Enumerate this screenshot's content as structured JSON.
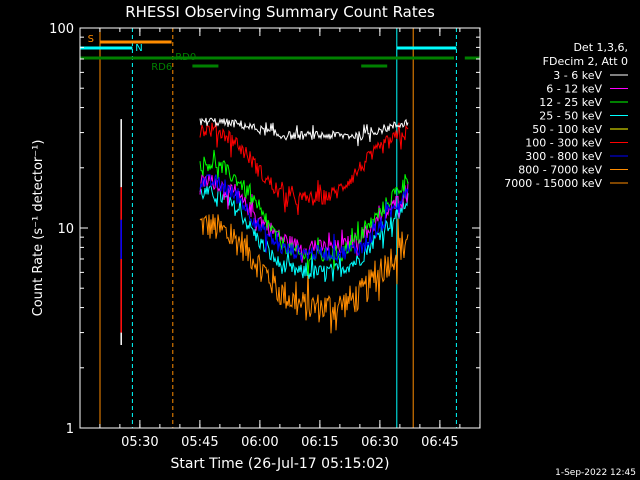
{
  "chart_data": {
    "type": "line",
    "title": "RHESSI Observing Summary Count Rates",
    "xlabel": "Start Time (26-Jul-17 05:15:02)",
    "ylabel": "Count Rate (s⁻¹ detector⁻¹)",
    "x_unit": "minutes after 05:15:02",
    "xlim": [
      0,
      100
    ],
    "ylim": [
      1,
      100
    ],
    "yscale": "log",
    "x_ticks": [
      {
        "x": 14.97,
        "label": "05:30"
      },
      {
        "x": 29.97,
        "label": "05:45"
      },
      {
        "x": 44.97,
        "label": "06:00"
      },
      {
        "x": 59.97,
        "label": "06:15"
      },
      {
        "x": 74.97,
        "label": "06:30"
      },
      {
        "x": 89.97,
        "label": "06:45"
      }
    ],
    "y_ticks": [
      {
        "y": 1,
        "label": "1"
      },
      {
        "y": 10,
        "label": "10"
      },
      {
        "y": 100,
        "label": "100"
      }
    ],
    "legend_header": [
      "Det 1,3,6,",
      "FDecim 2, Att 0"
    ],
    "legend_position": "right",
    "series": [
      {
        "name": "3 - 6 keV",
        "color": "#ffffff",
        "x": [
          30,
          34,
          40,
          45,
          50,
          55,
          60,
          65,
          70,
          75,
          80,
          82
        ],
        "y": [
          34,
          34,
          33,
          31,
          29,
          29,
          29,
          29,
          29,
          31,
          33,
          34
        ]
      },
      {
        "name": "6 - 12 keV",
        "color": "#ff00ff",
        "x": [
          30,
          34,
          40,
          45,
          50,
          55,
          60,
          65,
          70,
          75,
          80,
          82
        ],
        "y": [
          17,
          17,
          14,
          11,
          9,
          8,
          8,
          8,
          9,
          11,
          14,
          16
        ]
      },
      {
        "name": "12 - 25 keV",
        "color": "#00ff00",
        "x": [
          30,
          34,
          40,
          45,
          50,
          55,
          60,
          65,
          70,
          75,
          80,
          82
        ],
        "y": [
          21,
          21,
          17,
          12,
          8.5,
          7.3,
          7.2,
          7.5,
          9,
          12,
          16,
          18
        ]
      },
      {
        "name": "25 - 50 keV",
        "color": "#00ffff",
        "x": [
          30,
          34,
          40,
          45,
          50,
          55,
          60,
          65,
          70,
          75,
          80,
          82
        ],
        "y": [
          15,
          15,
          12,
          8.5,
          6.5,
          6,
          6,
          6.2,
          7,
          9.5,
          12,
          14
        ]
      },
      {
        "name": "50 - 100 keV",
        "color": "#ffff00",
        "x": [],
        "y": []
      },
      {
        "name": "100 - 300 keV",
        "color": "#ff0000",
        "x": [
          30,
          34,
          38,
          42,
          46,
          50,
          53,
          56,
          60,
          64,
          68,
          72,
          76,
          80,
          82
        ],
        "y": [
          31,
          31,
          28,
          23,
          18,
          15,
          14,
          14,
          14,
          15,
          18,
          22,
          26,
          29,
          30
        ]
      },
      {
        "name": "300 - 800 keV",
        "color": "#0000ff",
        "x": [
          30,
          34,
          40,
          45,
          50,
          55,
          60,
          65,
          70,
          75,
          80,
          82
        ],
        "y": [
          17,
          17,
          14,
          10,
          8,
          7.5,
          7.5,
          7.5,
          8,
          10,
          14,
          16
        ]
      },
      {
        "name": "800 - 7000 keV",
        "color": "#ff8c00",
        "x": [
          30,
          34,
          40,
          45,
          50,
          55,
          60,
          65,
          70,
          75,
          80,
          82
        ],
        "y": [
          10.5,
          10,
          8.5,
          6.5,
          4.8,
          4.1,
          4,
          4.1,
          4.6,
          6,
          8,
          9
        ]
      },
      {
        "name": "7000 - 15000 keV",
        "color": "#ff8c00",
        "x": [],
        "y": []
      }
    ],
    "spike": {
      "x": 10.3,
      "segments": [
        {
          "color": "#ffffff",
          "y0": 2.6,
          "y1": 35
        },
        {
          "color": "#ff0000",
          "y0": 3,
          "y1": 16
        },
        {
          "color": "#0000ff",
          "y0": 7,
          "y1": 11
        }
      ]
    },
    "vertical_markers": [
      {
        "x": 0,
        "color": "#00ffff",
        "style": "solid"
      },
      {
        "x": 5.0,
        "color": "#ff8c00",
        "style": "solid"
      },
      {
        "x": 13.1,
        "color": "#00ffff",
        "style": "dashed"
      },
      {
        "x": 23.2,
        "color": "#ff8c00",
        "style": "dashed"
      },
      {
        "x": 79.2,
        "color": "#00ffff",
        "style": "solid"
      },
      {
        "x": 83.3,
        "color": "#ff8c00",
        "style": "solid"
      },
      {
        "x": 94.1,
        "color": "#00ffff",
        "style": "dashed"
      }
    ],
    "flag_bars": [
      {
        "name": "S",
        "color": "#ff8c00",
        "level": 1,
        "segments": [
          [
            5.0,
            22.9
          ]
        ],
        "label_x": 1.9
      },
      {
        "name": "N",
        "color": "#00ffff",
        "level": 2,
        "segments": [
          [
            0,
            13.1
          ],
          [
            79.2,
            94.1
          ]
        ],
        "label_x": 13.8
      },
      {
        "name": "RD0",
        "color": "#008000",
        "level": 3,
        "segments": [
          [
            0,
            93.5
          ],
          [
            96.2,
            100
          ]
        ],
        "label_x": 23.8
      },
      {
        "name": "RD6",
        "color": "#008000",
        "level": 4,
        "segments": [
          [
            28.1,
            34.6
          ],
          [
            70.3,
            76.8
          ]
        ],
        "label_x": 17.8
      }
    ]
  },
  "timestamp": "1-Sep-2022 12:45"
}
